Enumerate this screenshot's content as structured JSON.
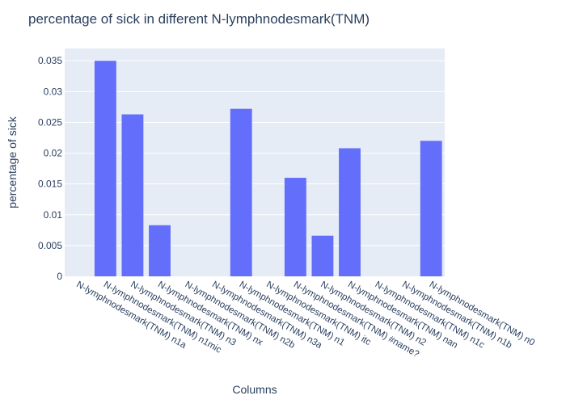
{
  "chart_data": {
    "type": "bar",
    "title": "percentage of sick in different N-lymphnodesmark(TNM)",
    "xlabel": "Columns",
    "ylabel": "percentage of sick",
    "ylim": [
      0,
      0.037
    ],
    "yticks": [
      0,
      0.005,
      0.01,
      0.015,
      0.02,
      0.025,
      0.03,
      0.035
    ],
    "ytick_labels": [
      "0",
      "0.005",
      "0.01",
      "0.015",
      "0.02",
      "0.025",
      "0.03",
      "0.035"
    ],
    "grid": true,
    "categories": [
      "N-lymphnodesmark(TNM) n1a",
      "N-lymphnodesmark(TNM) n1mic",
      "N-lymphnodesmark(TNM) n3",
      "N-lymphnodesmark(TNM) nx",
      "N-lymphnodesmark(TNM) n2b",
      "N-lymphnodesmark(TNM) n3a",
      "N-lymphnodesmark(TNM) n1",
      "N-lymphnodesmark(TNM) itc",
      "N-lymphnodesmark(TNM) #name?",
      "N-lymphnodesmark(TNM) n2",
      "N-lymphnodesmark(TNM) nan",
      "N-lymphnodesmark(TNM) n1c",
      "N-lymphnodesmark(TNM) n1b",
      "N-lymphnodesmark(TNM) n0"
    ],
    "values": [
      0,
      0.035,
      0.0263,
      0.0083,
      0,
      0,
      0.0272,
      0,
      0.016,
      0.0066,
      0.0208,
      0,
      0,
      0.022
    ],
    "colors": {
      "bar": "#636efa",
      "plot_bg": "#e5ecf6",
      "grid": "#ffffff",
      "text": "#2a3f5f"
    }
  }
}
